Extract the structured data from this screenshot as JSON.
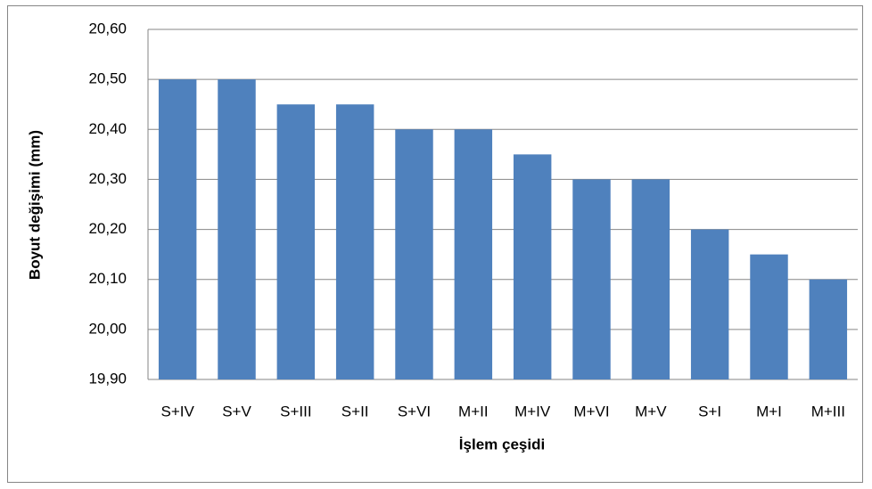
{
  "chart_data": {
    "type": "bar",
    "xlabel": "İşlem çeşidi",
    "ylabel": "Boyut değişimi (mm)",
    "categories": [
      "S+IV",
      "S+V",
      "S+III",
      "S+II",
      "S+VI",
      "M+II",
      "M+IV",
      "M+VI",
      "M+V",
      "S+I",
      "M+I",
      "M+III"
    ],
    "values": [
      20.5,
      20.5,
      20.45,
      20.45,
      20.4,
      20.4,
      20.35,
      20.3,
      20.3,
      20.2,
      20.15,
      20.1
    ],
    "color": "#4f81bd",
    "ylim": [
      19.9,
      20.6
    ],
    "yticks": [
      {
        "value": 19.9,
        "label": "19,90"
      },
      {
        "value": 20.0,
        "label": "20,00"
      },
      {
        "value": 20.1,
        "label": "20,10"
      },
      {
        "value": 20.2,
        "label": "20,20"
      },
      {
        "value": 20.3,
        "label": "20,30"
      },
      {
        "value": 20.4,
        "label": "20,40"
      },
      {
        "value": 20.5,
        "label": "20,50"
      },
      {
        "value": 20.6,
        "label": "20,60"
      }
    ],
    "grid": true
  }
}
